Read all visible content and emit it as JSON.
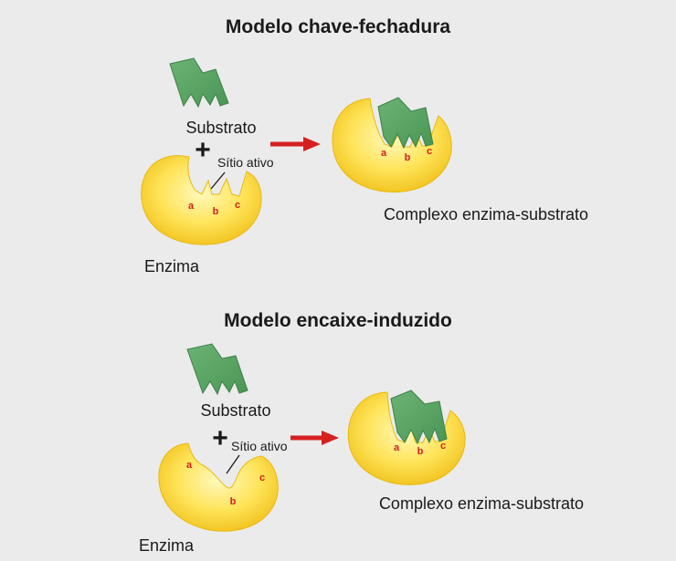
{
  "top": {
    "title": "Modelo chave-fechadura",
    "substrate_label": "Substrato",
    "plus": "+",
    "active_site_label": "Sítio ativo",
    "enzyme_label": "Enzima",
    "complex_label": "Complexo enzima-substrato",
    "site_a": "a",
    "site_b": "b",
    "site_c": "c",
    "complex_site_a": "a",
    "complex_site_b": "b",
    "complex_site_c": "c"
  },
  "bottom": {
    "title": "Modelo encaixe-induzido",
    "substrate_label": "Substrato",
    "plus": "+",
    "active_site_label": "Sítio ativo",
    "enzyme_label": "Enzima",
    "complex_label": "Complexo enzima-substrato",
    "site_a": "a",
    "site_b": "b",
    "site_c": "c",
    "complex_site_a": "a",
    "complex_site_b": "b",
    "complex_site_c": "c"
  },
  "colors": {
    "background": "#ebebeb",
    "enzyme_light": "#fff6a8",
    "enzyme_dark": "#f1c40f",
    "substrate": "#5aa363",
    "substrate_dark": "#3e8048",
    "arrow": "#d62020",
    "site_label": "#d42020"
  }
}
